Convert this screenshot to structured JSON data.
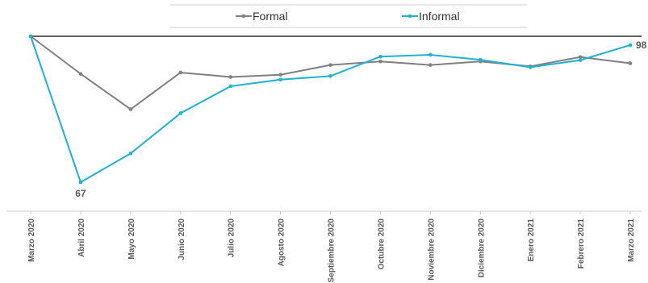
{
  "chart_data": {
    "type": "line",
    "title": "",
    "xlabel": "",
    "ylabel": "",
    "categories": [
      "Marzo 2020",
      "Abril 2020",
      "Mayo 2020",
      "Junio 2020",
      "Julio 2020",
      "Agosto 2020",
      "Septiembre 2020",
      "Octubre 2020",
      "Noviembre 2020",
      "Diciembre 2020",
      "Enero 2021",
      "Febrero 2021",
      "Marzo 2021"
    ],
    "series": [
      {
        "name": "Formal",
        "color": "#808080",
        "values": [
          100,
          91.5,
          83.5,
          91.8,
          90.8,
          91.3,
          93.5,
          94.3,
          93.5,
          94.3,
          93.2,
          95.3,
          93.9
        ]
      },
      {
        "name": "Informal",
        "color": "#1eb2d3",
        "values": [
          100,
          67.0,
          73.5,
          82.6,
          88.7,
          90.2,
          91.0,
          95.4,
          95.8,
          94.7,
          93.0,
          94.6,
          98.0
        ]
      }
    ],
    "data_labels": [
      {
        "series": 1,
        "index": 1,
        "text": "67"
      },
      {
        "series": 1,
        "index": 12,
        "text": "98"
      }
    ],
    "reference_line": 100,
    "ylim": [
      58,
      100
    ],
    "legend_position": "top-center",
    "grid": false
  }
}
